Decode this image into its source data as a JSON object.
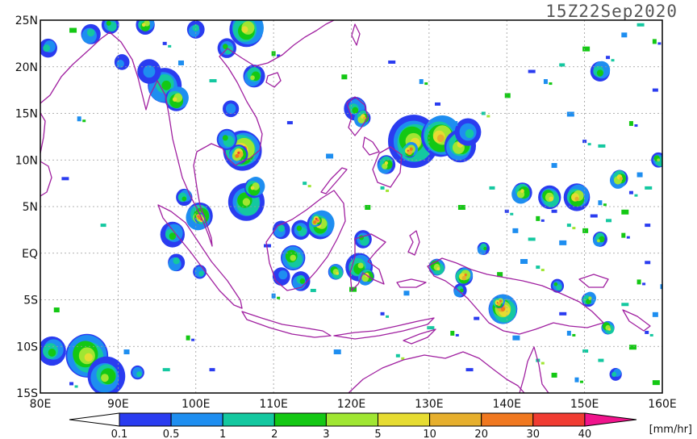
{
  "timestamp": "15Z22Sep2020",
  "units": "[mm/hr]",
  "map": {
    "lon_range": [
      80,
      160
    ],
    "lat_range": [
      -15,
      25
    ],
    "lon_ticks": [
      {
        "value": 80,
        "label": "80E"
      },
      {
        "value": 90,
        "label": "90E"
      },
      {
        "value": 100,
        "label": "100E"
      },
      {
        "value": 110,
        "label": "110E"
      },
      {
        "value": 120,
        "label": "120E"
      },
      {
        "value": 130,
        "label": "130E"
      },
      {
        "value": 140,
        "label": "140E"
      },
      {
        "value": 150,
        "label": "150E"
      },
      {
        "value": 160,
        "label": "160E"
      }
    ],
    "lat_ticks": [
      {
        "value": 25,
        "label": "25N"
      },
      {
        "value": 20,
        "label": "20N"
      },
      {
        "value": 15,
        "label": "15N"
      },
      {
        "value": 10,
        "label": "10N"
      },
      {
        "value": 5,
        "label": "5N"
      },
      {
        "value": 0,
        "label": "EQ"
      },
      {
        "value": -5,
        "label": "5S"
      },
      {
        "value": -10,
        "label": "10S"
      },
      {
        "value": -15,
        "label": "15S"
      }
    ],
    "grid": true,
    "coastline_color": "#a020a0"
  },
  "colorbar": {
    "labels": [
      "0.1",
      "0.5",
      "1",
      "2",
      "3",
      "5",
      "10",
      "20",
      "30",
      "40"
    ],
    "colors": [
      "#2a3cf0",
      "#1e8ef0",
      "#14c8a0",
      "#14c814",
      "#a0e632",
      "#e6dc32",
      "#e6af2d",
      "#f07820",
      "#f03c32",
      "#f0148c"
    ]
  },
  "rain_cells": [
    {
      "lon": 86.0,
      "lat": -11.0,
      "r": 2.6,
      "level": 5
    },
    {
      "lon": 81.5,
      "lat": -10.5,
      "r": 1.6,
      "level": 3
    },
    {
      "lon": 88.5,
      "lat": -13.2,
      "r": 2.0,
      "level": 4
    },
    {
      "lon": 92.5,
      "lat": -12.8,
      "r": 0.8,
      "level": 2
    },
    {
      "lon": 81.0,
      "lat": 22.0,
      "r": 1.0,
      "level": 2
    },
    {
      "lon": 86.5,
      "lat": 23.5,
      "r": 1.2,
      "level": 2
    },
    {
      "lon": 89.0,
      "lat": 24.5,
      "r": 1.0,
      "level": 3
    },
    {
      "lon": 93.5,
      "lat": 24.5,
      "r": 1.0,
      "level": 5
    },
    {
      "lon": 96.0,
      "lat": 18.0,
      "r": 2.0,
      "level": 3
    },
    {
      "lon": 94.0,
      "lat": 19.5,
      "r": 1.3,
      "level": 1
    },
    {
      "lon": 97.5,
      "lat": 16.5,
      "r": 1.4,
      "level": 5
    },
    {
      "lon": 100.0,
      "lat": 24.0,
      "r": 1.0,
      "level": 2
    },
    {
      "lon": 104.0,
      "lat": 22.0,
      "r": 1.0,
      "level": 3
    },
    {
      "lon": 106.5,
      "lat": 24.0,
      "r": 2.0,
      "level": 5
    },
    {
      "lon": 107.5,
      "lat": 19.0,
      "r": 1.2,
      "level": 4
    },
    {
      "lon": 104.5,
      "lat": 15.5,
      "r": 1.0,
      "level": 1
    },
    {
      "lon": 106.0,
      "lat": 11.0,
      "r": 2.2,
      "level": 7
    },
    {
      "lon": 105.5,
      "lat": 10.6,
      "r": 1.0,
      "level": 8
    },
    {
      "lon": 104.0,
      "lat": 12.2,
      "r": 1.2,
      "level": 3
    },
    {
      "lon": 98.5,
      "lat": 6.0,
      "r": 0.9,
      "level": 3
    },
    {
      "lon": 100.5,
      "lat": 4.0,
      "r": 1.6,
      "level": 5
    },
    {
      "lon": 100.5,
      "lat": 3.8,
      "r": 0.6,
      "level": 9
    },
    {
      "lon": 97.0,
      "lat": 2.0,
      "r": 1.3,
      "level": 3
    },
    {
      "lon": 97.5,
      "lat": -1.0,
      "r": 1.0,
      "level": 2
    },
    {
      "lon": 106.5,
      "lat": 5.5,
      "r": 2.0,
      "level": 4
    },
    {
      "lon": 107.5,
      "lat": 7.0,
      "r": 1.2,
      "level": 5
    },
    {
      "lon": 111.0,
      "lat": 2.5,
      "r": 1.0,
      "level": 2
    },
    {
      "lon": 113.5,
      "lat": 2.5,
      "r": 1.0,
      "level": 3
    },
    {
      "lon": 116.0,
      "lat": 3.0,
      "r": 1.6,
      "level": 5
    },
    {
      "lon": 115.5,
      "lat": 3.5,
      "r": 0.6,
      "level": 9
    },
    {
      "lon": 112.5,
      "lat": -0.5,
      "r": 1.5,
      "level": 4
    },
    {
      "lon": 111.0,
      "lat": -2.5,
      "r": 1.0,
      "level": 1
    },
    {
      "lon": 113.5,
      "lat": -3.0,
      "r": 1.0,
      "level": 3
    },
    {
      "lon": 118.0,
      "lat": -2.0,
      "r": 0.9,
      "level": 5
    },
    {
      "lon": 121.0,
      "lat": -1.5,
      "r": 1.5,
      "level": 4
    },
    {
      "lon": 122.0,
      "lat": -2.5,
      "r": 0.9,
      "level": 6
    },
    {
      "lon": 121.5,
      "lat": 1.5,
      "r": 1.0,
      "level": 3
    },
    {
      "lon": 120.5,
      "lat": 15.5,
      "r": 1.2,
      "level": 3
    },
    {
      "lon": 121.5,
      "lat": 14.5,
      "r": 0.9,
      "level": 6
    },
    {
      "lon": 128.0,
      "lat": 12.0,
      "r": 2.8,
      "level": 5
    },
    {
      "lon": 131.5,
      "lat": 12.5,
      "r": 2.4,
      "level": 6
    },
    {
      "lon": 134.0,
      "lat": 11.5,
      "r": 1.8,
      "level": 5
    },
    {
      "lon": 135.0,
      "lat": 13.0,
      "r": 1.4,
      "level": 2
    },
    {
      "lon": 127.5,
      "lat": 11.0,
      "r": 0.8,
      "level": 8
    },
    {
      "lon": 124.5,
      "lat": 9.5,
      "r": 1.0,
      "level": 5
    },
    {
      "lon": 131.0,
      "lat": -1.5,
      "r": 1.0,
      "level": 5
    },
    {
      "lon": 134.5,
      "lat": -2.5,
      "r": 1.0,
      "level": 7
    },
    {
      "lon": 134.0,
      "lat": -4.0,
      "r": 0.7,
      "level": 3
    },
    {
      "lon": 139.5,
      "lat": -6.0,
      "r": 1.7,
      "level": 7
    },
    {
      "lon": 139.0,
      "lat": -5.3,
      "r": 0.6,
      "level": 8
    },
    {
      "lon": 142.0,
      "lat": 6.5,
      "r": 1.2,
      "level": 5
    },
    {
      "lon": 145.5,
      "lat": 6.0,
      "r": 1.3,
      "level": 5
    },
    {
      "lon": 149.0,
      "lat": 6.0,
      "r": 1.4,
      "level": 6
    },
    {
      "lon": 154.5,
      "lat": 8.0,
      "r": 1.0,
      "level": 6
    },
    {
      "lon": 159.5,
      "lat": 10.0,
      "r": 0.8,
      "level": 4
    },
    {
      "lon": 152.0,
      "lat": 19.5,
      "r": 1.2,
      "level": 3
    },
    {
      "lon": 137.0,
      "lat": 0.5,
      "r": 0.7,
      "level": 3
    },
    {
      "lon": 146.5,
      "lat": -3.5,
      "r": 0.7,
      "level": 3
    },
    {
      "lon": 150.5,
      "lat": -5.0,
      "r": 0.8,
      "level": 4
    },
    {
      "lon": 152.0,
      "lat": 1.5,
      "r": 0.8,
      "level": 4
    },
    {
      "lon": 153.0,
      "lat": -8.0,
      "r": 0.8,
      "level": 5
    },
    {
      "lon": 154.0,
      "lat": -13.0,
      "r": 0.7,
      "level": 2
    },
    {
      "lon": 90.5,
      "lat": 20.5,
      "r": 0.8,
      "level": 1
    },
    {
      "lon": 100.5,
      "lat": -2.0,
      "r": 0.8,
      "level": 2
    }
  ],
  "scattered_cells": [
    [
      140,
      4.5
    ],
    [
      141,
      2.5
    ],
    [
      143,
      1.5
    ],
    [
      144,
      3.8
    ],
    [
      146,
      4.5
    ],
    [
      147,
      1.2
    ],
    [
      148,
      3.0
    ],
    [
      150,
      2.5
    ],
    [
      151,
      4.0
    ],
    [
      152,
      5.5
    ],
    [
      153,
      3.5
    ],
    [
      155,
      4.5
    ],
    [
      156,
      6.5
    ],
    [
      157,
      8.5
    ],
    [
      158,
      7.0
    ],
    [
      155,
      2.0
    ],
    [
      158,
      3.0
    ],
    [
      142,
      -0.8
    ],
    [
      144,
      -1.5
    ],
    [
      139,
      -2.2
    ],
    [
      147,
      -6.5
    ],
    [
      148,
      -8.5
    ],
    [
      150,
      -10.5
    ],
    [
      156,
      -10.0
    ],
    [
      158,
      -8.5
    ],
    [
      159,
      -6.5
    ],
    [
      155,
      -5.5
    ],
    [
      157,
      -3.0
    ],
    [
      158,
      -1.0
    ],
    [
      160,
      -3.5
    ],
    [
      137,
      15.0
    ],
    [
      140,
      17.0
    ],
    [
      143,
      19.5
    ],
    [
      145,
      18.5
    ],
    [
      147,
      20.2
    ],
    [
      150,
      22.0
    ],
    [
      153,
      21.0
    ],
    [
      155,
      23.5
    ],
    [
      157,
      24.5
    ],
    [
      159,
      22.8
    ],
    [
      131,
      16.0
    ],
    [
      133,
      14.0
    ],
    [
      124,
      7.0
    ],
    [
      122,
      5.0
    ],
    [
      109,
      0.8
    ],
    [
      110,
      -4.5
    ],
    [
      115,
      -4.0
    ],
    [
      120,
      -3.8
    ],
    [
      124,
      -6.5
    ],
    [
      127,
      -4.2
    ],
    [
      130,
      -8.0
    ],
    [
      133,
      -8.5
    ],
    [
      136,
      -7.0
    ],
    [
      141,
      -9.0
    ],
    [
      144,
      -11.5
    ],
    [
      146,
      -13.0
    ],
    [
      135,
      -12.5
    ],
    [
      149,
      -13.5
    ],
    [
      152,
      -11.5
    ],
    [
      159,
      -13.8
    ],
    [
      84,
      -14.0
    ],
    [
      91,
      -10.5
    ],
    [
      96,
      -12.5
    ],
    [
      99,
      -9.0
    ],
    [
      102,
      -12.5
    ],
    [
      118,
      -10.5
    ],
    [
      126,
      -11.0
    ],
    [
      82,
      -6.0
    ],
    [
      83,
      8.0
    ],
    [
      85,
      14.5
    ],
    [
      88,
      3.0
    ],
    [
      84,
      24.0
    ],
    [
      96,
      22.5
    ],
    [
      98,
      20.5
    ],
    [
      102,
      18.5
    ],
    [
      110,
      21.5
    ],
    [
      112,
      14.0
    ],
    [
      117,
      10.5
    ],
    [
      114,
      7.5
    ],
    [
      119,
      19.0
    ],
    [
      125,
      20.5
    ],
    [
      129,
      18.5
    ],
    [
      138,
      7.0
    ],
    [
      134,
      5.0
    ],
    [
      150,
      12.0
    ],
    [
      146,
      9.5
    ],
    [
      152,
      11.5
    ],
    [
      156,
      14.0
    ],
    [
      159,
      17.5
    ],
    [
      148,
      15.0
    ]
  ]
}
